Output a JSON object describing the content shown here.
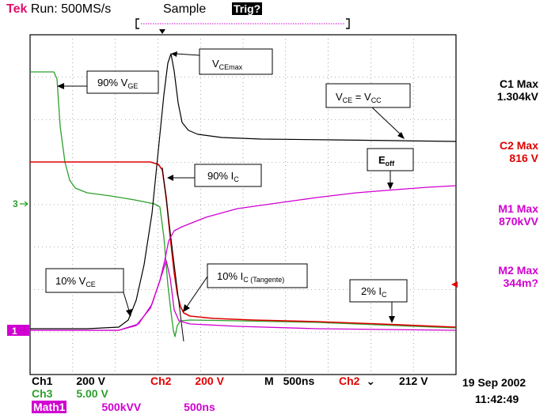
{
  "header": {
    "brand": "Tek",
    "run_status": "Run: 500MS/s",
    "mode": "Sample",
    "trig": "Trig?"
  },
  "colors": {
    "ch1": "#000000",
    "ch2": "#e00000",
    "ch3": "#2ca02c",
    "math": "#d000d0",
    "brand": "#e0106a"
  },
  "annotations": {
    "vce_max": {
      "main": "V",
      "sub": "CEmax"
    },
    "vge_90": {
      "pre": "90% V",
      "sub": "GE"
    },
    "vce_vcc": {
      "a": "V",
      "a_sub": "CE",
      "mid": " = V",
      "b_sub": "CC"
    },
    "ic_90": {
      "pre": "90% I",
      "sub": "C"
    },
    "eoff": {
      "main": "E",
      "sub": "off"
    },
    "vce_10": {
      "pre": "10% V",
      "sub": "CE"
    },
    "ic_10_tang": {
      "pre": "10% I",
      "sub": "C (Tangente)"
    },
    "ic_2": {
      "pre": "2% I",
      "sub": "C"
    }
  },
  "measurements": [
    {
      "label": "C1 Max",
      "value": "1.304kV",
      "color": "#000000"
    },
    {
      "label": "C2 Max",
      "value": "816 V",
      "color": "#e00000"
    },
    {
      "label": "M1 Max",
      "value": "870kVV",
      "color": "#d000d0"
    },
    {
      "label": "M2 Max",
      "value": "344m?",
      "color": "#d000d0"
    }
  ],
  "markers": {
    "ch3_ground": "3",
    "ch1_ground": "1"
  },
  "footer": {
    "ch1_name": "Ch1",
    "ch1_scale": "200 V",
    "ch2_name": "Ch2",
    "ch2_scale": "200 V",
    "timebase_label": "M",
    "timebase": "500ns",
    "trig_source": "Ch2",
    "trig_symbol": "⌄",
    "trig_level": "212 V",
    "ch3_name": "Ch3",
    "ch3_scale": "5.00 V",
    "math_name": "Math1",
    "math_scale": "500kVV",
    "math_time": "500ns",
    "date": "19 Sep 2002",
    "time": "11:42:49"
  }
}
